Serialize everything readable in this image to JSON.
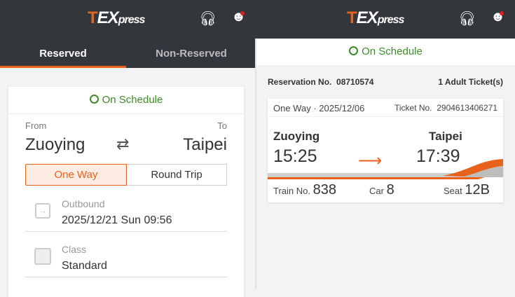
{
  "brand": {
    "logo_t": "T",
    "logo_ex": "EX",
    "logo_press": "press"
  },
  "left": {
    "tabs": [
      {
        "label": "Reserved",
        "active": true
      },
      {
        "label": "Non-Reserved",
        "active": false
      }
    ],
    "status": "On Schedule",
    "from_label": "From",
    "to_label": "To",
    "from": "Zuoying",
    "to": "Taipei",
    "trip_types": [
      {
        "label": "One Way",
        "selected": true
      },
      {
        "label": "Round Trip",
        "selected": false
      }
    ],
    "outbound_label": "Outbound",
    "outbound_value": "2025/12/21 Sun 09:56",
    "class_label": "Class",
    "class_value": "Standard"
  },
  "right": {
    "status": "On Schedule",
    "reservation_label": "Reservation No.",
    "reservation_no": "08710574",
    "tickets": "1 Adult Ticket(s)",
    "ticket": {
      "trip": "One Way · 2025/12/06",
      "ticket_label": "Ticket No.",
      "ticket_no": "2904613406271",
      "from": "Zuoying",
      "to": "Taipei",
      "dep": "15:25",
      "arr": "17:39",
      "train_label": "Train No.",
      "train": "838",
      "car_label": "Car",
      "car": "8",
      "seat_label": "Seat",
      "seat": "12B"
    }
  },
  "colors": {
    "accent": "#e8621c",
    "header": "#33373b",
    "status": "#3f8a2a"
  }
}
